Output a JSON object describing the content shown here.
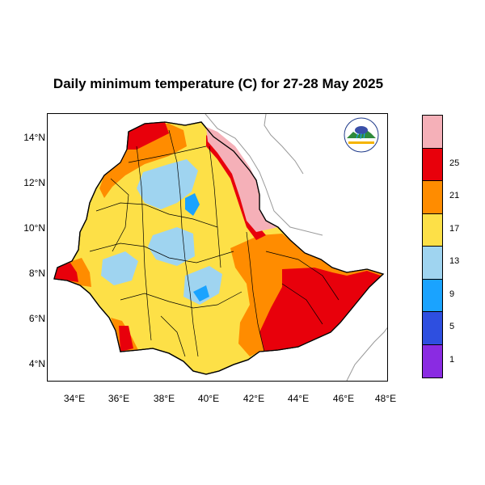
{
  "title": "Daily minimum temperature (C) for 27-28 May 2025",
  "axes": {
    "x_ticks": [
      "34°E",
      "36°E",
      "38°E",
      "40°E",
      "42°E",
      "44°E",
      "46°E",
      "48°E"
    ],
    "y_ticks": [
      "14°N",
      "12°N",
      "10°N",
      "8°N",
      "6°N",
      "4°N"
    ],
    "x_range_deg": [
      33,
      48.2
    ],
    "y_range_deg": [
      3.2,
      15
    ]
  },
  "legend": {
    "bins": [
      {
        "label": "",
        "color": "#f5b0b8"
      },
      {
        "label": "25",
        "color": "#e8000b"
      },
      {
        "label": "21",
        "color": "#ff8c00"
      },
      {
        "label": "17",
        "color": "#fde047"
      },
      {
        "label": "13",
        "color": "#9fd4f0"
      },
      {
        "label": "9",
        "color": "#1aa3ff"
      },
      {
        "label": "5",
        "color": "#2e4fe0"
      },
      {
        "label": "1",
        "color": "#8a2be2"
      }
    ]
  },
  "logo": {
    "description_icon": "ethiopian-meteorology-institute-logo-icon",
    "text": "የኢትዮጵያ ሜትሮሎጂ ኢንስቲትዩት",
    "subtext": "Ethiopian Meteorology Institute"
  }
}
